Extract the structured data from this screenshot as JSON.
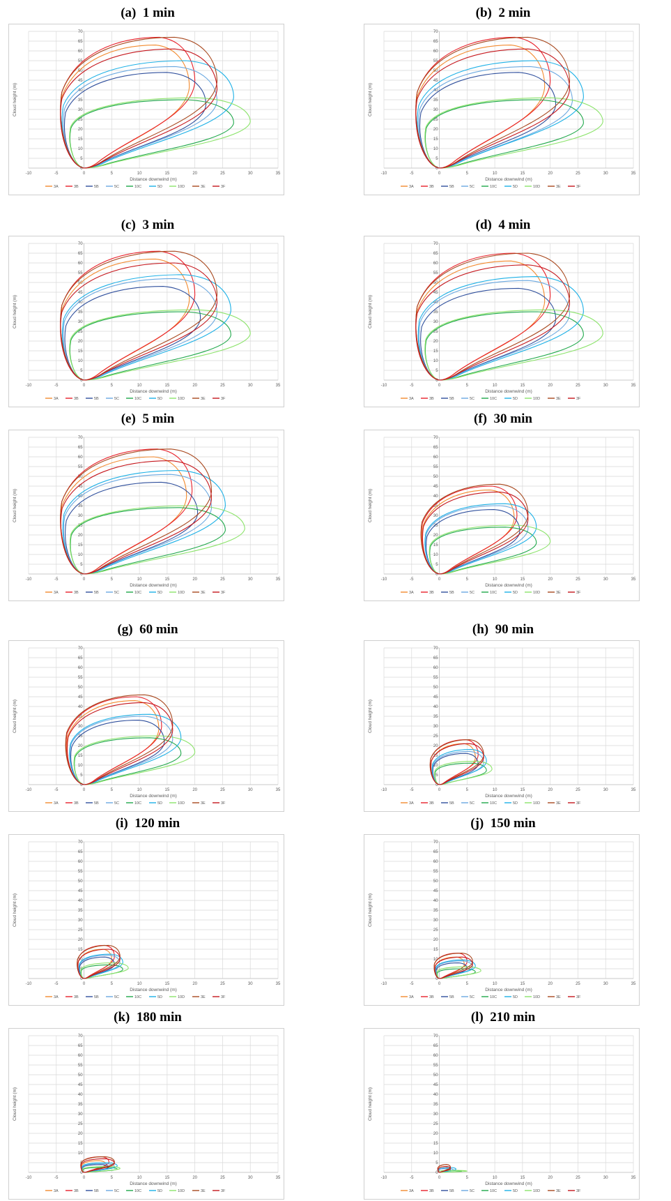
{
  "legend": [
    "3A",
    "3B",
    "5B",
    "5C",
    "10C",
    "5D",
    "10D",
    "3E",
    "3F"
  ],
  "colors": {
    "3A": "#f28a2e",
    "3B": "#e8202a",
    "5B": "#2f4f9c",
    "5C": "#6aa8e0",
    "10C": "#1fa84a",
    "5D": "#1cb0e6",
    "10D": "#8be36a",
    "3E": "#a8481e",
    "3F": "#c5161c"
  },
  "axes": {
    "xlabel": "Distance downwind  (m)",
    "ylabel": "Cloud height  (m)",
    "xlim": [
      -10,
      35
    ],
    "ylim": [
      0,
      70
    ],
    "xticks": [
      "-10",
      "-5",
      "0",
      "5",
      "10",
      "15",
      "20",
      "25",
      "30",
      "35"
    ],
    "yticks": [
      "0",
      "5",
      "10",
      "15",
      "20",
      "25",
      "30",
      "35",
      "40",
      "45",
      "50",
      "55",
      "60",
      "65",
      "70"
    ],
    "grid": true,
    "legend_position": "bottom"
  },
  "chart_data": [
    {
      "type": "line",
      "panel": "(a)",
      "time": "1 min",
      "series": [
        {
          "name": "3A",
          "ymax": 63,
          "xmax": 19
        },
        {
          "name": "3B",
          "ymax": 67,
          "xmax": 20
        },
        {
          "name": "5B",
          "ymax": 49,
          "xmax": 22
        },
        {
          "name": "5C",
          "ymax": 52,
          "xmax": 24
        },
        {
          "name": "10C",
          "ymax": 35,
          "xmax": 27
        },
        {
          "name": "5D",
          "ymax": 55,
          "xmax": 27
        },
        {
          "name": "10D",
          "ymax": 36,
          "xmax": 30
        },
        {
          "name": "3E",
          "ymax": 67,
          "xmax": 24
        },
        {
          "name": "3F",
          "ymax": 61,
          "xmax": 24
        }
      ]
    },
    {
      "type": "line",
      "panel": "(b)",
      "time": "2 min",
      "series": [
        {
          "name": "3A",
          "ymax": 63,
          "xmax": 19
        },
        {
          "name": "3B",
          "ymax": 67,
          "xmax": 20
        },
        {
          "name": "5B",
          "ymax": 49,
          "xmax": 21
        },
        {
          "name": "5C",
          "ymax": 52,
          "xmax": 24
        },
        {
          "name": "10C",
          "ymax": 35,
          "xmax": 26
        },
        {
          "name": "5D",
          "ymax": 55,
          "xmax": 26
        },
        {
          "name": "10D",
          "ymax": 36,
          "xmax": 29.5
        },
        {
          "name": "3E",
          "ymax": 67,
          "xmax": 23.5
        },
        {
          "name": "3F",
          "ymax": 61,
          "xmax": 23.5
        }
      ]
    },
    {
      "type": "line",
      "panel": "(c)",
      "time": "3 min",
      "series": [
        {
          "name": "3A",
          "ymax": 62,
          "xmax": 19
        },
        {
          "name": "3B",
          "ymax": 66,
          "xmax": 20
        },
        {
          "name": "5B",
          "ymax": 48,
          "xmax": 21
        },
        {
          "name": "5C",
          "ymax": 52,
          "xmax": 24
        },
        {
          "name": "10C",
          "ymax": 35,
          "xmax": 26.5
        },
        {
          "name": "5D",
          "ymax": 54,
          "xmax": 26.5
        },
        {
          "name": "10D",
          "ymax": 36,
          "xmax": 30
        },
        {
          "name": "3E",
          "ymax": 66,
          "xmax": 24
        },
        {
          "name": "3F",
          "ymax": 60,
          "xmax": 24
        }
      ]
    },
    {
      "type": "line",
      "panel": "(d)",
      "time": "4 min",
      "series": [
        {
          "name": "3A",
          "ymax": 61,
          "xmax": 19
        },
        {
          "name": "3B",
          "ymax": 65,
          "xmax": 20
        },
        {
          "name": "5B",
          "ymax": 47,
          "xmax": 21
        },
        {
          "name": "5C",
          "ymax": 51,
          "xmax": 23.5
        },
        {
          "name": "10C",
          "ymax": 35,
          "xmax": 26
        },
        {
          "name": "5D",
          "ymax": 53,
          "xmax": 26
        },
        {
          "name": "10D",
          "ymax": 36,
          "xmax": 29.5
        },
        {
          "name": "3E",
          "ymax": 65,
          "xmax": 23.5
        },
        {
          "name": "3F",
          "ymax": 59,
          "xmax": 23.5
        }
      ]
    },
    {
      "type": "line",
      "panel": "(e)",
      "time": "5 min",
      "series": [
        {
          "name": "3A",
          "ymax": 60,
          "xmax": 18.5
        },
        {
          "name": "3B",
          "ymax": 64,
          "xmax": 19.5
        },
        {
          "name": "5B",
          "ymax": 47,
          "xmax": 20.5
        },
        {
          "name": "5C",
          "ymax": 51,
          "xmax": 23
        },
        {
          "name": "10C",
          "ymax": 34,
          "xmax": 25.5
        },
        {
          "name": "5D",
          "ymax": 53,
          "xmax": 25.5
        },
        {
          "name": "10D",
          "ymax": 35,
          "xmax": 29
        },
        {
          "name": "3E",
          "ymax": 64,
          "xmax": 23
        },
        {
          "name": "3F",
          "ymax": 58,
          "xmax": 23
        }
      ]
    },
    {
      "type": "line",
      "panel": "(f)",
      "time": "30 min",
      "series": [
        {
          "name": "3A",
          "ymax": 43,
          "xmax": 13.5
        },
        {
          "name": "3B",
          "ymax": 45,
          "xmax": 14
        },
        {
          "name": "5B",
          "ymax": 33,
          "xmax": 14.5
        },
        {
          "name": "5C",
          "ymax": 35,
          "xmax": 16
        },
        {
          "name": "10C",
          "ymax": 24,
          "xmax": 17.5
        },
        {
          "name": "5D",
          "ymax": 36,
          "xmax": 17.5
        },
        {
          "name": "10D",
          "ymax": 25,
          "xmax": 20
        },
        {
          "name": "3E",
          "ymax": 46,
          "xmax": 16
        },
        {
          "name": "3F",
          "ymax": 42,
          "xmax": 16
        }
      ]
    },
    {
      "type": "line",
      "panel": "(g)",
      "time": "60 min",
      "series": [
        {
          "name": "3A",
          "ymax": 43,
          "xmax": 13.5
        },
        {
          "name": "3B",
          "ymax": 45,
          "xmax": 14
        },
        {
          "name": "5B",
          "ymax": 33,
          "xmax": 14.5
        },
        {
          "name": "5C",
          "ymax": 35,
          "xmax": 16
        },
        {
          "name": "10C",
          "ymax": 24,
          "xmax": 17.5
        },
        {
          "name": "5D",
          "ymax": 36,
          "xmax": 17.5
        },
        {
          "name": "10D",
          "ymax": 25,
          "xmax": 20
        },
        {
          "name": "3E",
          "ymax": 46,
          "xmax": 16
        },
        {
          "name": "3F",
          "ymax": 42,
          "xmax": 16
        }
      ]
    },
    {
      "type": "line",
      "panel": "(h)",
      "time": "90 min",
      "series": [
        {
          "name": "3A",
          "ymax": 21,
          "xmax": 6.5
        },
        {
          "name": "3B",
          "ymax": 23,
          "xmax": 7
        },
        {
          "name": "5B",
          "ymax": 16,
          "xmax": 7
        },
        {
          "name": "5C",
          "ymax": 17,
          "xmax": 8
        },
        {
          "name": "10C",
          "ymax": 11,
          "xmax": 8.5
        },
        {
          "name": "5D",
          "ymax": 18,
          "xmax": 8.5
        },
        {
          "name": "10D",
          "ymax": 12,
          "xmax": 9.5
        },
        {
          "name": "3E",
          "ymax": 23,
          "xmax": 8
        },
        {
          "name": "3F",
          "ymax": 21,
          "xmax": 8
        }
      ]
    },
    {
      "type": "line",
      "panel": "(i)",
      "time": "120 min",
      "series": [
        {
          "name": "3A",
          "ymax": 15,
          "xmax": 5
        },
        {
          "name": "3B",
          "ymax": 17,
          "xmax": 5.5
        },
        {
          "name": "5B",
          "ymax": 11,
          "xmax": 5.5
        },
        {
          "name": "5C",
          "ymax": 12,
          "xmax": 6.5
        },
        {
          "name": "10C",
          "ymax": 7,
          "xmax": 7
        },
        {
          "name": "5D",
          "ymax": 12.5,
          "xmax": 7
        },
        {
          "name": "10D",
          "ymax": 8,
          "xmax": 8
        },
        {
          "name": "3E",
          "ymax": 17,
          "xmax": 6.5
        },
        {
          "name": "3F",
          "ymax": 15,
          "xmax": 6.5
        }
      ]
    },
    {
      "type": "line",
      "panel": "(j)",
      "time": "150 min",
      "series": [
        {
          "name": "3A",
          "ymax": 11,
          "xmax": 4.5
        },
        {
          "name": "3B",
          "ymax": 13,
          "xmax": 5
        },
        {
          "name": "5B",
          "ymax": 8,
          "xmax": 5
        },
        {
          "name": "5C",
          "ymax": 9,
          "xmax": 6
        },
        {
          "name": "10C",
          "ymax": 5,
          "xmax": 6.5
        },
        {
          "name": "5D",
          "ymax": 9.5,
          "xmax": 6.5
        },
        {
          "name": "10D",
          "ymax": 6,
          "xmax": 7.5
        },
        {
          "name": "3E",
          "ymax": 13,
          "xmax": 6
        },
        {
          "name": "3F",
          "ymax": 11,
          "xmax": 6
        }
      ]
    },
    {
      "type": "line",
      "panel": "(k)",
      "time": "180 min",
      "series": [
        {
          "name": "3A",
          "ymax": 6,
          "xmax": 4
        },
        {
          "name": "3B",
          "ymax": 8,
          "xmax": 4.5
        },
        {
          "name": "5B",
          "ymax": 4,
          "xmax": 4.5
        },
        {
          "name": "5C",
          "ymax": 4.5,
          "xmax": 5.5
        },
        {
          "name": "10C",
          "ymax": 2.5,
          "xmax": 6
        },
        {
          "name": "5D",
          "ymax": 5,
          "xmax": 6
        },
        {
          "name": "10D",
          "ymax": 3,
          "xmax": 6.5
        },
        {
          "name": "3E",
          "ymax": 8,
          "xmax": 5.5
        },
        {
          "name": "3F",
          "ymax": 7,
          "xmax": 5.5
        }
      ]
    },
    {
      "type": "line",
      "panel": "(l)",
      "time": "210 min",
      "series": [
        {
          "name": "3A",
          "ymax": 3,
          "xmax": 1.5
        },
        {
          "name": "3B",
          "ymax": 4,
          "xmax": 2
        },
        {
          "name": "5B",
          "ymax": 2,
          "xmax": 2
        },
        {
          "name": "5C",
          "ymax": 2,
          "xmax": 2.5
        },
        {
          "name": "10C",
          "ymax": 1,
          "xmax": 4
        },
        {
          "name": "5D",
          "ymax": 2.5,
          "xmax": 3
        },
        {
          "name": "10D",
          "ymax": 1,
          "xmax": 5
        },
        {
          "name": "3E",
          "ymax": 4,
          "xmax": 2
        },
        {
          "name": "3F",
          "ymax": 3,
          "xmax": 2
        }
      ]
    }
  ]
}
